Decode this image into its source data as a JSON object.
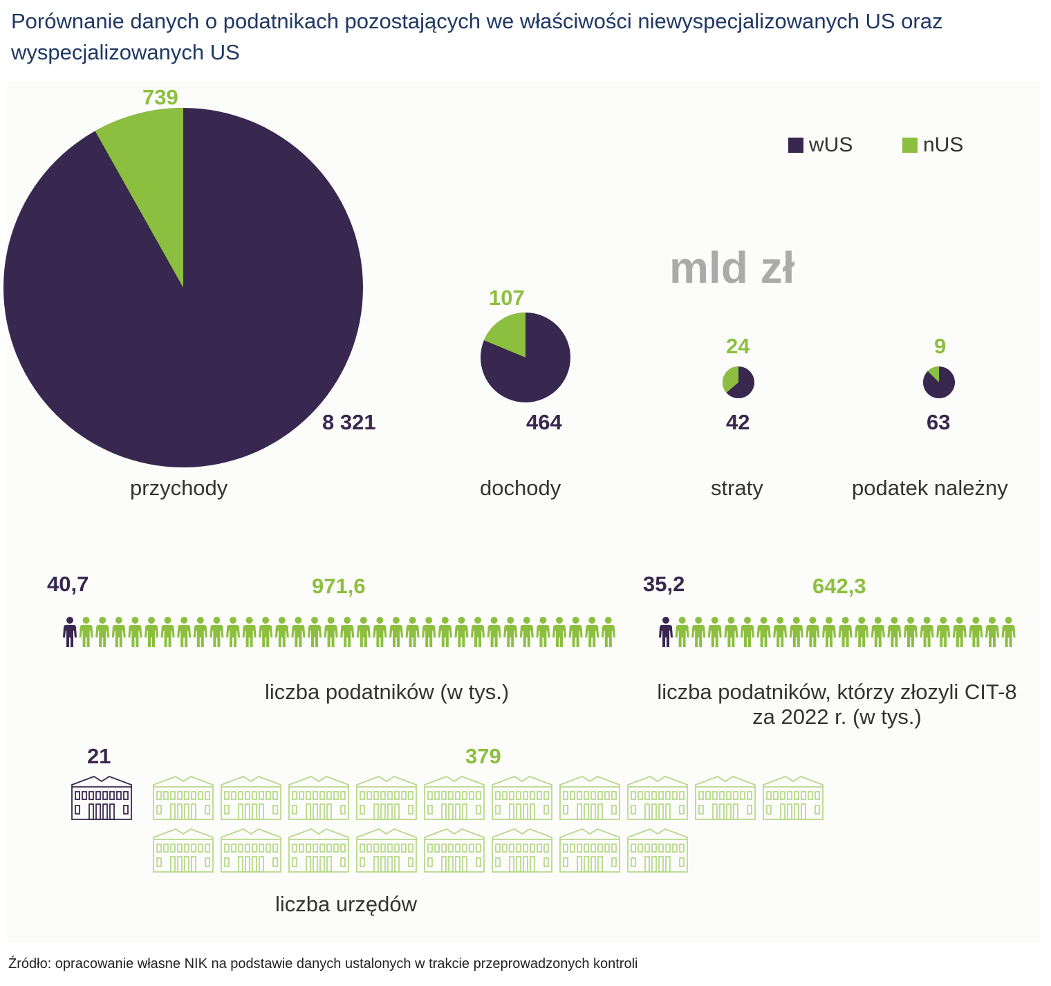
{
  "title": "Porównanie danych o podatnikach pozostających we właściwości niewyspecjalizowanych US oraz wyspecjalizowanych US",
  "unit_label": "mld zł",
  "legend": [
    {
      "label": "wUS",
      "color": "#38274e"
    },
    {
      "label": "nUS",
      "color": "#8cbf3f"
    }
  ],
  "chart_data": [
    {
      "type": "pie",
      "title": "przychody",
      "series": [
        {
          "name": "wUS",
          "value": 8321,
          "label": "8 321"
        },
        {
          "name": "nUS",
          "value": 739,
          "label": "739"
        }
      ]
    },
    {
      "type": "pie",
      "title": "dochody",
      "series": [
        {
          "name": "wUS",
          "value": 464,
          "label": "464"
        },
        {
          "name": "nUS",
          "value": 107,
          "label": "107"
        }
      ]
    },
    {
      "type": "pie",
      "title": "straty",
      "series": [
        {
          "name": "wUS",
          "value": 42,
          "label": "42"
        },
        {
          "name": "nUS",
          "value": 24,
          "label": "24"
        }
      ]
    },
    {
      "type": "pie",
      "title": "podatek należny",
      "series": [
        {
          "name": "wUS",
          "value": 63,
          "label": "63"
        },
        {
          "name": "nUS",
          "value": 9,
          "label": "9"
        }
      ]
    },
    {
      "type": "pictogram",
      "title": "liczba podatników (w tys.)",
      "series": [
        {
          "name": "wUS",
          "value": 40.7,
          "label": "40,7",
          "icons": 1
        },
        {
          "name": "nUS",
          "value": 971.6,
          "label": "971,6",
          "icons": 33
        }
      ]
    },
    {
      "type": "pictogram",
      "title": "liczba podatników, którzy złozyli CIT-8",
      "title_line2": "za 2022 r. (w tys.)",
      "series": [
        {
          "name": "wUS",
          "value": 35.2,
          "label": "35,2",
          "icons": 1
        },
        {
          "name": "nUS",
          "value": 642.3,
          "label": "642,3",
          "icons": 21
        }
      ]
    },
    {
      "type": "pictogram",
      "title": "liczba urzędów",
      "series": [
        {
          "name": "wUS",
          "value": 21,
          "label": "21",
          "icons": 1
        },
        {
          "name": "nUS",
          "value": 379,
          "label": "379",
          "icons": 18
        }
      ]
    }
  ],
  "source": "Źródło: opracowanie własne NIK na podstawie danych ustalonych w trakcie przeprowadzonych kontroli"
}
